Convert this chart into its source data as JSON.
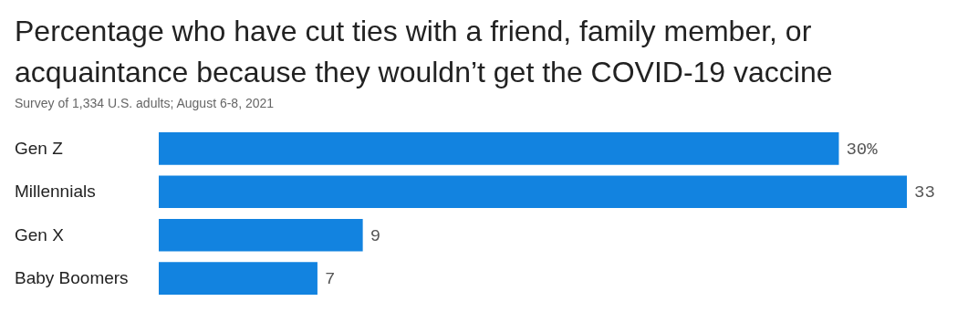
{
  "chart_data": {
    "type": "bar",
    "orientation": "horizontal",
    "title": "Percentage who have cut ties with a friend, family member, or acquaintance because they wouldn’t get the COVID-19 vaccine",
    "subtitle": "Survey of 1,334 U.S. adults; August 6-8, 2021",
    "categories": [
      "Gen Z",
      "Millennials",
      "Gen X",
      "Baby Boomers"
    ],
    "values": [
      30,
      33,
      9,
      7
    ],
    "value_labels": [
      "30%",
      "33",
      "9",
      "7"
    ],
    "color": "#1283e0",
    "grid": false
  }
}
